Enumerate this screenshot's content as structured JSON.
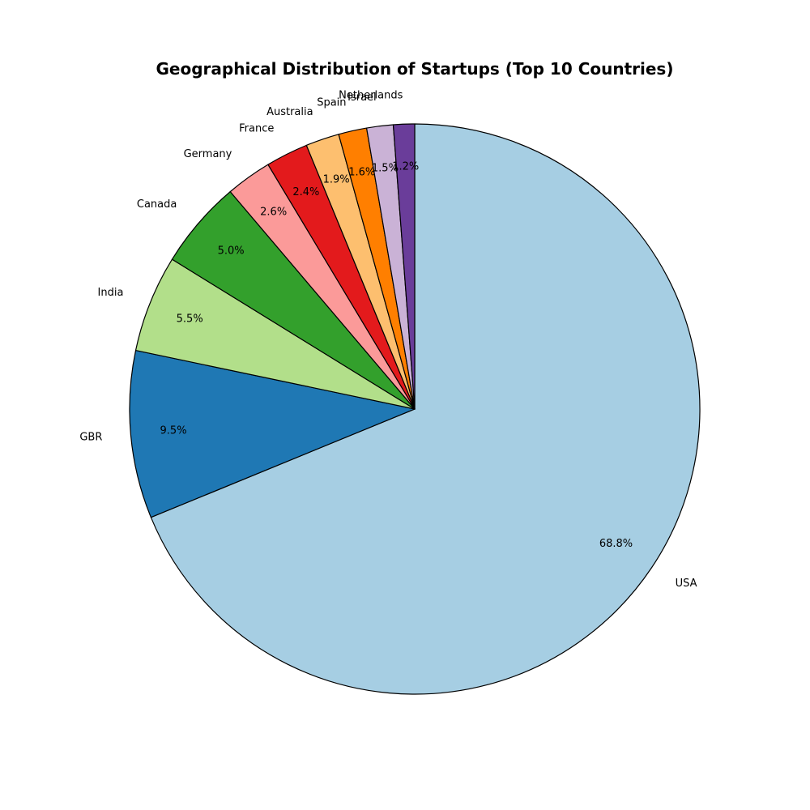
{
  "chart_data": {
    "type": "pie",
    "title": "Geographical Distribution of Startups (Top 10 Countries)",
    "start_angle": 90,
    "direction": "clockwise",
    "slices": [
      {
        "label": "USA",
        "value": 68.8,
        "pct_label": "68.8%",
        "color": "#a6cee3"
      },
      {
        "label": "GBR",
        "value": 9.5,
        "pct_label": "9.5%",
        "color": "#1f78b4"
      },
      {
        "label": "India",
        "value": 5.5,
        "pct_label": "5.5%",
        "color": "#b2df8a"
      },
      {
        "label": "Canada",
        "value": 5.0,
        "pct_label": "5.0%",
        "color": "#33a02c"
      },
      {
        "label": "Germany",
        "value": 2.6,
        "pct_label": "2.6%",
        "color": "#fb9a99"
      },
      {
        "label": "France",
        "value": 2.4,
        "pct_label": "2.4%",
        "color": "#e31a1c"
      },
      {
        "label": "Australia",
        "value": 1.9,
        "pct_label": "1.9%",
        "color": "#fdbf6f"
      },
      {
        "label": "Spain",
        "value": 1.6,
        "pct_label": "1.6%",
        "color": "#ff7f00"
      },
      {
        "label": "Israel",
        "value": 1.5,
        "pct_label": "1.5%",
        "color": "#cab2d6"
      },
      {
        "label": "Netherlands",
        "value": 1.2,
        "pct_label": "1.2%",
        "color": "#6a3d9a"
      }
    ]
  }
}
